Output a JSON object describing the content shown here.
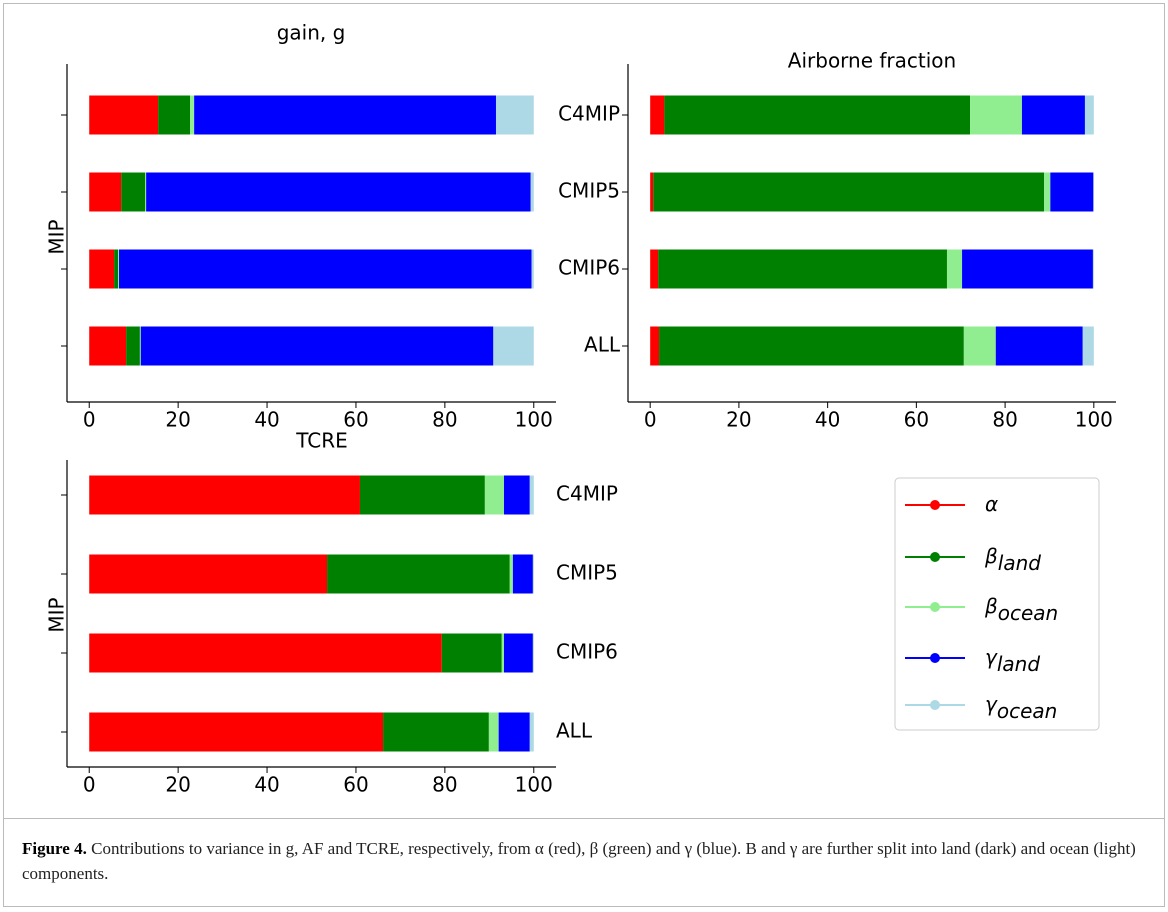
{
  "chart_data": [
    {
      "type": "bar",
      "orientation": "horizontal",
      "stacked": true,
      "title": "gain, g",
      "ylabel": "MIP",
      "series": [
        {
          "name": "α",
          "color": "#ff0000",
          "values": [
            15.5,
            7.2,
            5.6,
            8.3
          ]
        },
        {
          "name": "βland",
          "color": "#008000",
          "values": [
            7.2,
            5.4,
            0.9,
            3.1
          ]
        },
        {
          "name": "βocean",
          "color": "#90ee90",
          "values": [
            0.9,
            0.2,
            0.2,
            0.2
          ]
        },
        {
          "name": "γland",
          "color": "#0000ff",
          "values": [
            67.9,
            86.5,
            92.8,
            79.3
          ]
        },
        {
          "name": "γocean",
          "color": "#add8e6",
          "values": [
            8.5,
            0.7,
            0.5,
            9.1
          ]
        }
      ],
      "xlim": [
        -5,
        105
      ],
      "xticks": [
        0,
        20,
        40,
        60,
        80,
        100
      ]
    },
    {
      "type": "bar",
      "orientation": "horizontal",
      "stacked": true,
      "title": "Airborne fraction",
      "categories": [
        "C4MIP",
        "CMIP5",
        "CMIP6",
        "ALL"
      ],
      "series": [
        {
          "color": "#ff0000",
          "values": [
            3.2,
            0.7,
            1.8,
            2.0
          ]
        },
        {
          "color": "#008000",
          "values": [
            68.9,
            88.1,
            65.1,
            68.7
          ]
        },
        {
          "color": "#90ee90",
          "values": [
            11.7,
            1.4,
            3.4,
            7.2
          ]
        },
        {
          "color": "#0000ff",
          "values": [
            14.2,
            9.7,
            29.5,
            19.6
          ]
        },
        {
          "color": "#add8e6",
          "values": [
            2.0,
            0.1,
            0.2,
            2.5
          ]
        }
      ],
      "xlim": [
        -5,
        105
      ],
      "xticks": [
        0,
        20,
        40,
        60,
        80,
        100
      ]
    },
    {
      "type": "bar",
      "orientation": "horizontal",
      "stacked": true,
      "title": "TCRE",
      "ylabel": "MIP",
      "categories": [
        "C4MIP",
        "CMIP5",
        "CMIP6",
        "ALL"
      ],
      "series": [
        {
          "color": "#ff0000",
          "values": [
            60.9,
            53.5,
            79.3,
            66.1
          ]
        },
        {
          "color": "#008000",
          "values": [
            28.1,
            41.1,
            13.5,
            23.8
          ]
        },
        {
          "color": "#90ee90",
          "values": [
            4.3,
            0.7,
            0.5,
            2.2
          ]
        },
        {
          "color": "#0000ff",
          "values": [
            5.8,
            4.5,
            6.5,
            7.0
          ]
        },
        {
          "color": "#add8e6",
          "values": [
            0.9,
            0.2,
            0.2,
            0.9
          ]
        }
      ],
      "xlim": [
        -5,
        105
      ],
      "xticks": [
        0,
        20,
        40,
        60,
        80,
        100
      ]
    }
  ],
  "caption": {
    "label": "Figure 4.",
    "text": "Contributions to variance in g, AF and TCRE, respectively, from α (red), β (green) and γ (blue). B and γ are further split into land (dark) and ocean (light) components."
  }
}
